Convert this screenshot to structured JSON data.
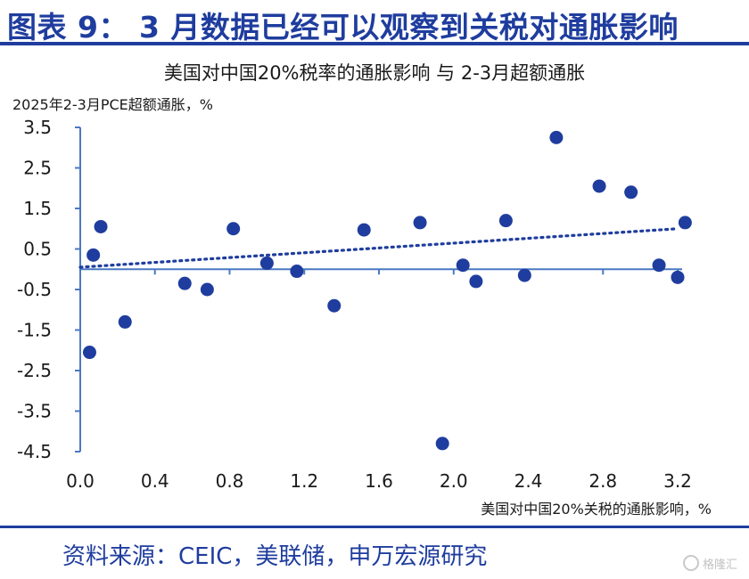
{
  "header": {
    "title": "图表 9： 3 月数据已经可以观察到关税对通胀影响"
  },
  "footer": {
    "source": "资料来源：CEIC，美联储，申万宏源研究",
    "watermark": "格隆汇"
  },
  "colors": {
    "brand": "#1f3d9e",
    "points": "#1f3d9e",
    "axis": "#4a78c2"
  },
  "chart_data": {
    "type": "scatter",
    "title": "美国对中国20%税率的通胀影响 与 2-3月超额通胀",
    "xlabel": "美国对中国20%关税的通胀影响，%",
    "ylabel": "2025年2-3月PCE超额通胀，%",
    "xlim": [
      0.0,
      3.3
    ],
    "ylim": [
      -4.5,
      3.5
    ],
    "x_ticks": [
      "0.0",
      "0.4",
      "0.8",
      "1.2",
      "1.6",
      "2.0",
      "2.4",
      "2.8",
      "3.2"
    ],
    "y_ticks": [
      "3.5",
      "2.5",
      "1.5",
      "0.5",
      "-0.5",
      "-1.5",
      "-2.5",
      "-3.5",
      "-4.5"
    ],
    "grid": false,
    "trendline": {
      "style": "dotted",
      "x": [
        0.0,
        3.2
      ],
      "y": [
        0.05,
        1.0
      ]
    },
    "points": [
      {
        "x": 0.05,
        "y": -2.05
      },
      {
        "x": 0.07,
        "y": 0.35
      },
      {
        "x": 0.11,
        "y": 1.05
      },
      {
        "x": 0.24,
        "y": -1.3
      },
      {
        "x": 0.56,
        "y": -0.35
      },
      {
        "x": 0.68,
        "y": -0.5
      },
      {
        "x": 0.82,
        "y": 1.0
      },
      {
        "x": 1.0,
        "y": 0.15
      },
      {
        "x": 1.16,
        "y": -0.05
      },
      {
        "x": 1.36,
        "y": -0.9
      },
      {
        "x": 1.52,
        "y": 0.97
      },
      {
        "x": 1.82,
        "y": 1.15
      },
      {
        "x": 1.94,
        "y": -4.3
      },
      {
        "x": 2.05,
        "y": 0.1
      },
      {
        "x": 2.12,
        "y": -0.3
      },
      {
        "x": 2.28,
        "y": 1.2
      },
      {
        "x": 2.38,
        "y": -0.15
      },
      {
        "x": 2.55,
        "y": 3.25
      },
      {
        "x": 2.78,
        "y": 2.05
      },
      {
        "x": 2.95,
        "y": 1.9
      },
      {
        "x": 3.1,
        "y": 0.1
      },
      {
        "x": 3.2,
        "y": -0.2
      },
      {
        "x": 3.24,
        "y": 1.15
      }
    ]
  }
}
